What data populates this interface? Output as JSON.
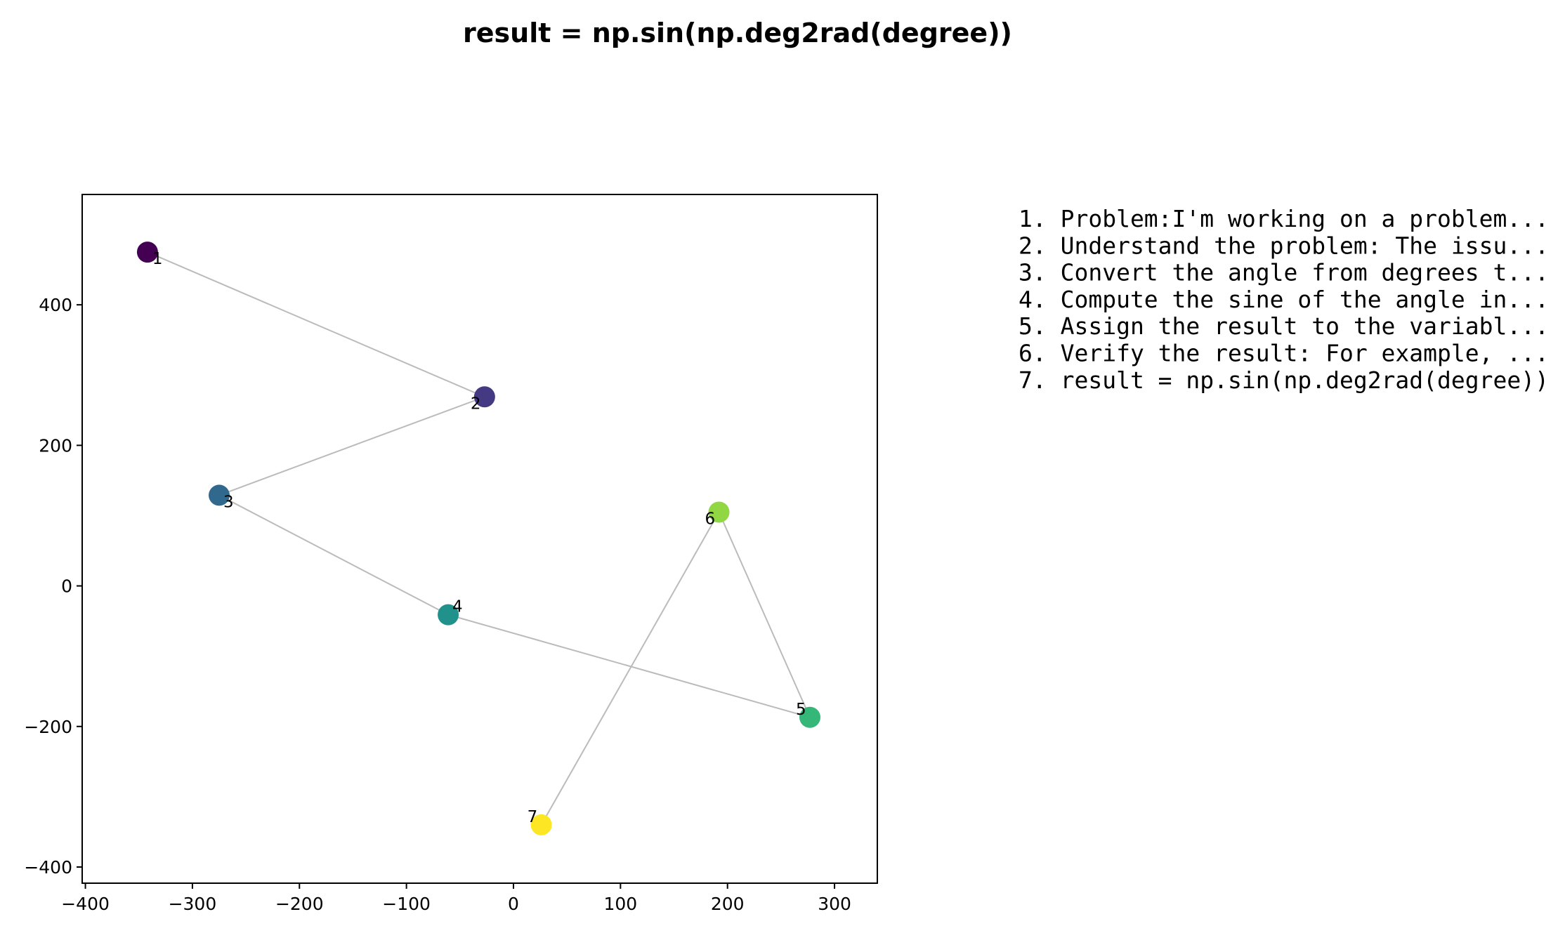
{
  "chart_data": {
    "type": "scatter",
    "title": "result = np.sin(np.deg2rad(degree))",
    "xlabel": "",
    "ylabel": "",
    "xlim": [
      -403,
      340
    ],
    "ylim": [
      -423,
      557
    ],
    "xticks": [
      -400,
      -300,
      -200,
      -100,
      0,
      100,
      200,
      300
    ],
    "yticks": [
      -400,
      -200,
      0,
      200,
      400
    ],
    "xtick_labels": [
      "−400",
      "−300",
      "−200",
      "−100",
      "0",
      "100",
      "200",
      "300"
    ],
    "ytick_labels": [
      "−400",
      "−200",
      "0",
      "200",
      "400"
    ],
    "grid": false,
    "connect_points": true,
    "line_color": "#bbbbbb",
    "points": [
      {
        "label": "1",
        "x": -342,
        "y": 475,
        "color": "#440154"
      },
      {
        "label": "2",
        "x": -27,
        "y": 269,
        "color": "#443983"
      },
      {
        "label": "3",
        "x": -275,
        "y": 129,
        "color": "#31688e"
      },
      {
        "label": "4",
        "x": -61,
        "y": -41,
        "color": "#21918c"
      },
      {
        "label": "5",
        "x": 277,
        "y": -187,
        "color": "#35b779"
      },
      {
        "label": "6",
        "x": 192,
        "y": 105,
        "color": "#90d743"
      },
      {
        "label": "7",
        "x": 26,
        "y": -340,
        "color": "#fde725"
      }
    ],
    "annotations": [
      "1. Problem:I'm working on a problem...",
      "2. Understand the problem: The issu...",
      "3. Convert the angle from degrees t...",
      "4. Compute the sine of the angle in...",
      "5. Assign the result to the variabl...",
      "6. Verify the result: For example, ...",
      "7. result = np.sin(np.deg2rad(degree))"
    ]
  }
}
